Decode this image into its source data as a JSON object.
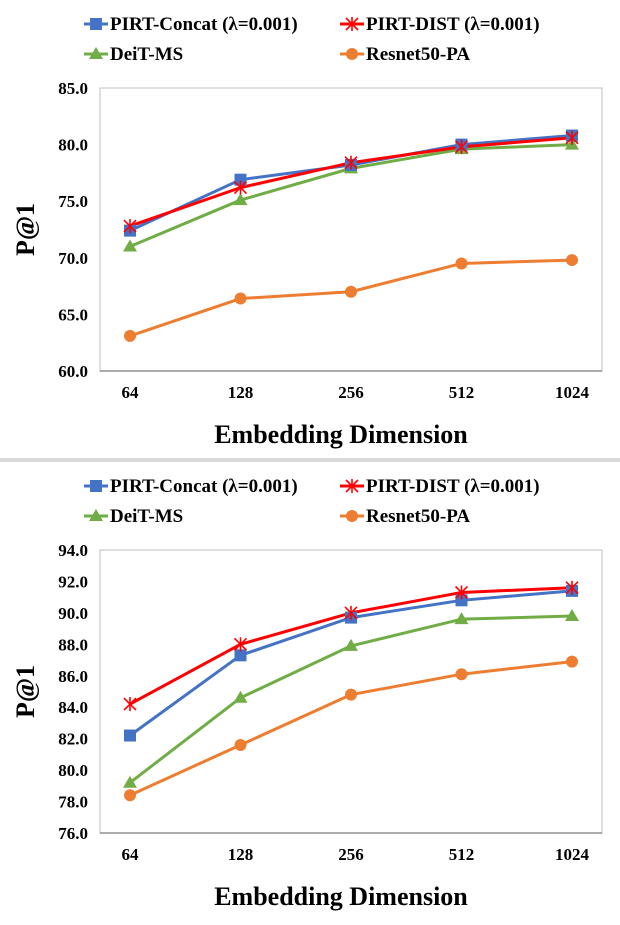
{
  "chart_data": [
    {
      "type": "line",
      "title": "",
      "xlabel": "Embedding Dimension",
      "ylabel": "P@1",
      "categories": [
        "64",
        "128",
        "256",
        "512",
        "1024"
      ],
      "ylim": [
        60,
        85
      ],
      "ytick_step": 5,
      "ytick_labels": [
        "60.0",
        "65.0",
        "70.0",
        "75.0",
        "80.0",
        "85.0"
      ],
      "grid": false,
      "legend_position": "top",
      "series": [
        {
          "name": "PIRT-Concat (λ=0.001)",
          "marker": "square",
          "color": "#4472c4",
          "values": [
            72.4,
            76.9,
            78.2,
            80.0,
            80.8
          ]
        },
        {
          "name": "PIRT-DIST (λ=0.001)",
          "marker": "star",
          "color": "#ff0000",
          "values": [
            72.8,
            76.2,
            78.4,
            79.8,
            80.6
          ]
        },
        {
          "name": "DeiT-MS",
          "marker": "triangle",
          "color": "#70ad47",
          "values": [
            71.0,
            75.1,
            77.9,
            79.6,
            80.0
          ]
        },
        {
          "name": "Resnet50-PA",
          "marker": "circle",
          "color": "#ed7d31",
          "values": [
            63.1,
            66.4,
            67.0,
            69.5,
            69.8
          ]
        }
      ]
    },
    {
      "type": "line",
      "title": "",
      "xlabel": "Embedding Dimension",
      "ylabel": "P@1",
      "categories": [
        "64",
        "128",
        "256",
        "512",
        "1024"
      ],
      "ylim": [
        76,
        94
      ],
      "ytick_step": 2,
      "ytick_labels": [
        "76.0",
        "78.0",
        "80.0",
        "82.0",
        "84.0",
        "86.0",
        "88.0",
        "90.0",
        "92.0",
        "94.0"
      ],
      "grid": false,
      "legend_position": "top",
      "series": [
        {
          "name": "PIRT-Concat (λ=0.001)",
          "marker": "square",
          "color": "#4472c4",
          "values": [
            82.2,
            87.3,
            89.7,
            90.8,
            91.4
          ]
        },
        {
          "name": "PIRT-DIST (λ=0.001)",
          "marker": "star",
          "color": "#ff0000",
          "values": [
            84.2,
            88.0,
            90.0,
            91.3,
            91.6
          ]
        },
        {
          "name": "DeiT-MS",
          "marker": "triangle",
          "color": "#70ad47",
          "values": [
            79.2,
            84.6,
            87.9,
            89.6,
            89.8
          ]
        },
        {
          "name": "Resnet50-PA",
          "marker": "circle",
          "color": "#ed7d31",
          "values": [
            78.4,
            81.6,
            84.8,
            86.1,
            86.9
          ]
        }
      ]
    }
  ]
}
